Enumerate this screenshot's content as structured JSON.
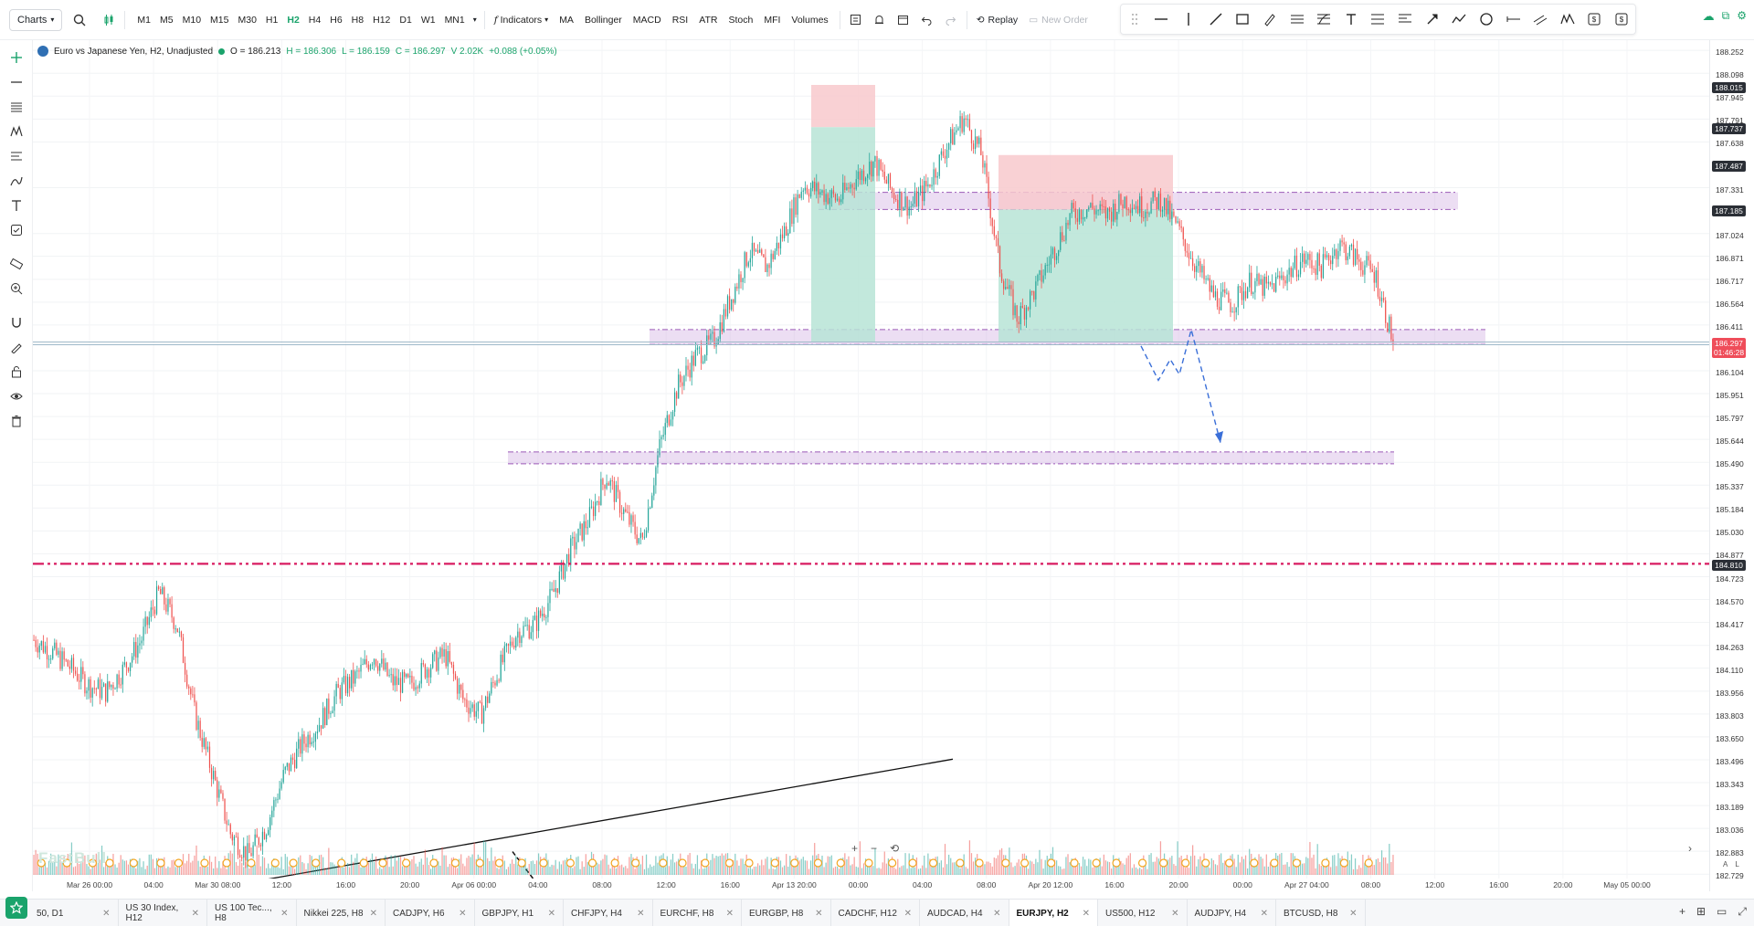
{
  "toolbar": {
    "charts_label": "Charts",
    "timeframes": [
      "M1",
      "M5",
      "M10",
      "M15",
      "M30",
      "H1",
      "H2",
      "H4",
      "H6",
      "H8",
      "H12",
      "D1",
      "W1",
      "MN1"
    ],
    "active_timeframe": "H2",
    "indicators_label": "Indicators",
    "indicator_shortcuts": [
      "MA",
      "Bollinger",
      "MACD",
      "RSI",
      "ATR",
      "Stoch",
      "MFI",
      "Volumes"
    ],
    "replay_label": "Replay",
    "new_order_label": "New Order"
  },
  "legend": {
    "symbol_title": "Euro vs Japanese Yen, H2, Unadjusted",
    "open": "O = 186.213",
    "high": "H = 186.306",
    "low": "L = 186.159",
    "close": "C = 186.297",
    "volume": "V 2.02K",
    "change": "+0.088 (+0.05%)"
  },
  "watermark": "FastBull",
  "price_axis": {
    "labels": [
      "188.252",
      "188.098",
      "187.945",
      "187.791",
      "187.638",
      "187.331",
      "187.024",
      "186.871",
      "186.717",
      "186.564",
      "186.411",
      "186.104",
      "185.951",
      "185.797",
      "185.644",
      "185.490",
      "185.337",
      "185.184",
      "185.030",
      "184.877",
      "184.723",
      "184.570",
      "184.417",
      "184.263",
      "184.110",
      "183.956",
      "183.803",
      "183.650",
      "183.496",
      "183.343",
      "183.189",
      "183.036",
      "182.883",
      "182.729"
    ],
    "tags": [
      {
        "value": 188.015,
        "text": "188.015",
        "color": "#2b2f36"
      },
      {
        "value": 187.737,
        "text": "187.737",
        "color": "#2b2f36"
      },
      {
        "value": 187.487,
        "text": "187.487",
        "color": "#2b2f36"
      },
      {
        "value": 187.185,
        "text": "187.185",
        "color": "#2b2f36"
      },
      {
        "value": 184.81,
        "text": "184.810",
        "color": "#2b2f36"
      }
    ],
    "current": {
      "value": 186.297,
      "text": "186.297",
      "countdown": "01:46:28",
      "color": "#ef4d5a"
    }
  },
  "time_axis": {
    "labels": [
      "Mar 26 00:00",
      "04:00",
      "Mar 30 08:00",
      "12:00",
      "16:00",
      "20:00",
      "Apr 06 00:00",
      "04:00",
      "08:00",
      "12:00",
      "16:00",
      "Apr 13 20:00",
      "00:00",
      "04:00",
      "08:00",
      "Apr 20 12:00",
      "16:00",
      "20:00",
      "00:00",
      "Apr 27 04:00",
      "08:00",
      "12:00",
      "16:00",
      "20:00",
      "May 05 00:00"
    ]
  },
  "chart_data": {
    "type": "candlestick",
    "symbol": "EURJPY",
    "timeframe": "H2",
    "ylim": [
      182.7,
      188.32
    ],
    "horizontal_levels": [
      {
        "value": 184.81,
        "style": "dash-dot",
        "color": "#d81b60"
      },
      {
        "value": 186.297,
        "style": "solid",
        "color": "#9fb9c9"
      }
    ],
    "zones": [
      {
        "from": 187.185,
        "to": 187.3,
        "color": "#c9a0dc"
      },
      {
        "from": 186.28,
        "to": 186.38,
        "color": "#c9a0dc"
      },
      {
        "from": 185.48,
        "to": 185.56,
        "color": "#c9a0dc"
      }
    ],
    "anchor_closes": [
      184.3,
      184.22,
      184.12,
      184.0,
      183.95,
      184.1,
      184.3,
      184.62,
      184.4,
      183.8,
      183.4,
      183.0,
      182.85,
      183.05,
      183.4,
      183.6,
      183.75,
      183.95,
      184.05,
      184.2,
      184.02,
      184.0,
      184.12,
      184.2,
      183.9,
      183.8,
      184.1,
      184.35,
      184.4,
      184.6,
      184.9,
      185.1,
      185.4,
      185.15,
      184.95,
      185.6,
      186.0,
      186.2,
      186.3,
      186.6,
      186.9,
      186.8,
      187.05,
      187.35,
      187.3,
      187.25,
      187.4,
      187.5,
      187.3,
      187.2,
      187.35,
      187.6,
      187.8,
      187.55,
      186.8,
      186.45,
      186.65,
      186.9,
      187.15,
      187.2,
      187.15,
      187.25,
      187.2,
      187.25,
      187.05,
      186.8,
      186.6,
      186.55,
      186.7,
      186.65,
      186.75,
      186.85,
      186.8,
      186.95,
      186.85,
      186.75,
      186.3
    ],
    "volume_scale_note": "volumes shown as histogram bars"
  },
  "bottom_tabs": [
    {
      "label": "50, D1",
      "active": false
    },
    {
      "label": "US 30 Index, H12",
      "active": false
    },
    {
      "label": "US 100 Tec..., H8",
      "active": false
    },
    {
      "label": "Nikkei 225, H8",
      "active": false
    },
    {
      "label": "CADJPY, H6",
      "active": false
    },
    {
      "label": "GBPJPY, H1",
      "active": false
    },
    {
      "label": "CHFJPY, H4",
      "active": false
    },
    {
      "label": "EURCHF, H8",
      "active": false
    },
    {
      "label": "EURGBP, H8",
      "active": false
    },
    {
      "label": "CADCHF, H12",
      "active": false
    },
    {
      "label": "AUDCAD, H4",
      "active": false
    },
    {
      "label": "EURJPY, H2",
      "active": true
    },
    {
      "label": "US500, H12",
      "active": false
    },
    {
      "label": "AUDJPY, H4",
      "active": false
    },
    {
      "label": "BTCUSD, H8",
      "active": false
    }
  ],
  "colors": {
    "bull": "#26a69a",
    "bear": "#ef5350",
    "accent": "#1aa36b",
    "level": "#d81b60",
    "zone": "#c9a0dc",
    "tp_fill": "#b7e4d6",
    "sl_fill": "#f8c9cc"
  }
}
